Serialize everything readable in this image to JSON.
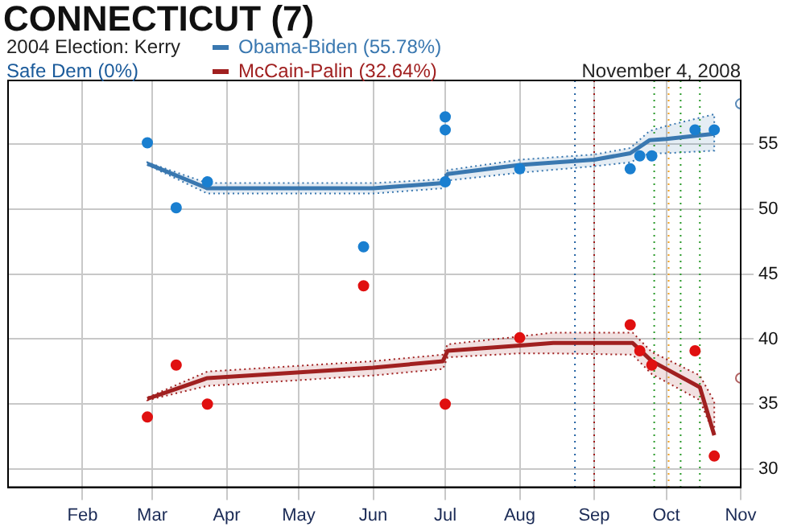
{
  "chart_data": {
    "type": "line",
    "title": "CONNECTICUT (7)",
    "annotations": [
      "2004 Election: Kerry",
      "Safe Dem (0%)",
      "November 4, 2008"
    ],
    "xlim": [
      "2008-01-01",
      "2008-11-01"
    ],
    "xticks": [
      {
        "value": "2008-02-01",
        "label": "Feb"
      },
      {
        "value": "2008-03-01",
        "label": "Mar"
      },
      {
        "value": "2008-04-01",
        "label": "Apr"
      },
      {
        "value": "2008-05-01",
        "label": "May"
      },
      {
        "value": "2008-06-01",
        "label": "Jun"
      },
      {
        "value": "2008-07-01",
        "label": "Jul"
      },
      {
        "value": "2008-08-01",
        "label": "Aug"
      },
      {
        "value": "2008-09-01",
        "label": "Sep"
      },
      {
        "value": "2008-10-01",
        "label": "Oct"
      },
      {
        "value": "2008-11-01",
        "label": "Nov"
      }
    ],
    "ylim": [
      28.6,
      59.9
    ],
    "yticks": [
      30,
      35,
      40,
      45,
      50,
      55
    ],
    "grid": true,
    "legend": "top",
    "marker": "circle",
    "line_style": "solid",
    "series": [
      {
        "marker": "none",
        "name": "Obama-Biden (55.78%)",
        "color": "#3a78b0",
        "x": [
          "2008-02-28",
          "2008-03-24",
          "2008-06-01",
          "2008-06-30",
          "2008-07-02",
          "2008-08-01",
          "2008-09-01",
          "2008-09-16",
          "2008-09-24",
          "2008-10-01",
          "2008-10-21"
        ],
        "values": [
          53.5,
          51.6,
          51.6,
          52.0,
          52.7,
          53.4,
          53.8,
          54.3,
          55.3,
          55.4,
          55.8
        ],
        "lower": [
          53.4,
          51.2,
          51.2,
          51.6,
          52.2,
          52.8,
          53.3,
          53.6,
          54.3,
          54.3,
          54.5
        ],
        "upper": [
          53.6,
          52.0,
          52.0,
          52.3,
          53.0,
          53.8,
          54.2,
          54.7,
          56.0,
          56.4,
          57.3
        ]
      },
      {
        "marker": "none",
        "name": "McCain-Palin (32.64%)",
        "color": "#a02020",
        "x": [
          "2008-02-28",
          "2008-03-24",
          "2008-06-01",
          "2008-06-30",
          "2008-07-02",
          "2008-08-01",
          "2008-08-15",
          "2008-09-17",
          "2008-09-25",
          "2008-10-15",
          "2008-10-21"
        ],
        "values": [
          35.4,
          37.0,
          37.8,
          38.3,
          39.1,
          39.5,
          39.7,
          39.7,
          38.3,
          36.3,
          32.6
        ],
        "lower": [
          35.3,
          36.4,
          37.2,
          37.7,
          38.6,
          38.9,
          38.9,
          38.8,
          37.3,
          35.3,
          32.6
        ],
        "upper": [
          35.5,
          37.5,
          38.3,
          38.8,
          39.6,
          40.2,
          40.5,
          40.5,
          39.0,
          37.2,
          35.2
        ]
      },
      {
        "type": "scatter",
        "color": "#1a7fd0",
        "x": [
          "2008-02-28",
          "2008-03-11",
          "2008-03-24",
          "2008-05-28",
          "2008-07-01",
          "2008-07-01",
          "2008-07-01",
          "2008-08-01",
          "2008-09-16",
          "2008-09-20",
          "2008-09-25",
          "2008-10-13",
          "2008-10-21"
        ],
        "values": [
          55.1,
          50.1,
          52.1,
          47.1,
          57.1,
          56.1,
          52.1,
          53.1,
          53.1,
          54.1,
          54.1,
          56.1,
          56.1
        ]
      },
      {
        "type": "scatter",
        "color": "#e01010",
        "x": [
          "2008-02-28",
          "2008-03-11",
          "2008-03-24",
          "2008-05-28",
          "2008-07-01",
          "2008-08-01",
          "2008-09-16",
          "2008-09-20",
          "2008-09-25",
          "2008-10-13",
          "2008-10-21"
        ],
        "values": [
          34.0,
          38.0,
          35.0,
          44.1,
          35.0,
          40.1,
          41.1,
          39.1,
          38.0,
          39.1,
          31.0
        ]
      },
      {
        "type": "scatter",
        "color": "#5a8ab8",
        "x": [
          "2008-11-01"
        ],
        "values": [
          58.1
        ]
      },
      {
        "type": "scatter",
        "color": "#b06060",
        "x": [
          "2008-11-01"
        ],
        "values": [
          37.0
        ]
      }
    ],
    "ref_lines": [
      {
        "axis": "x",
        "value": "2008-08-24",
        "color": "#1f5fa0",
        "line_style": "dotted"
      },
      {
        "axis": "x",
        "value": "2008-09-01",
        "color": "#a01818",
        "line_style": "dotted"
      },
      {
        "axis": "x",
        "value": "2008-09-26",
        "color": "#2a9a2a",
        "line_style": "dotted"
      },
      {
        "axis": "x",
        "value": "2008-10-02",
        "color": "#f0a020",
        "line_style": "dotted"
      },
      {
        "axis": "x",
        "value": "2008-10-07",
        "color": "#2a9a2a",
        "line_style": "dotted"
      },
      {
        "axis": "x",
        "value": "2008-10-15",
        "color": "#2a9a2a",
        "line_style": "dotted"
      }
    ]
  }
}
